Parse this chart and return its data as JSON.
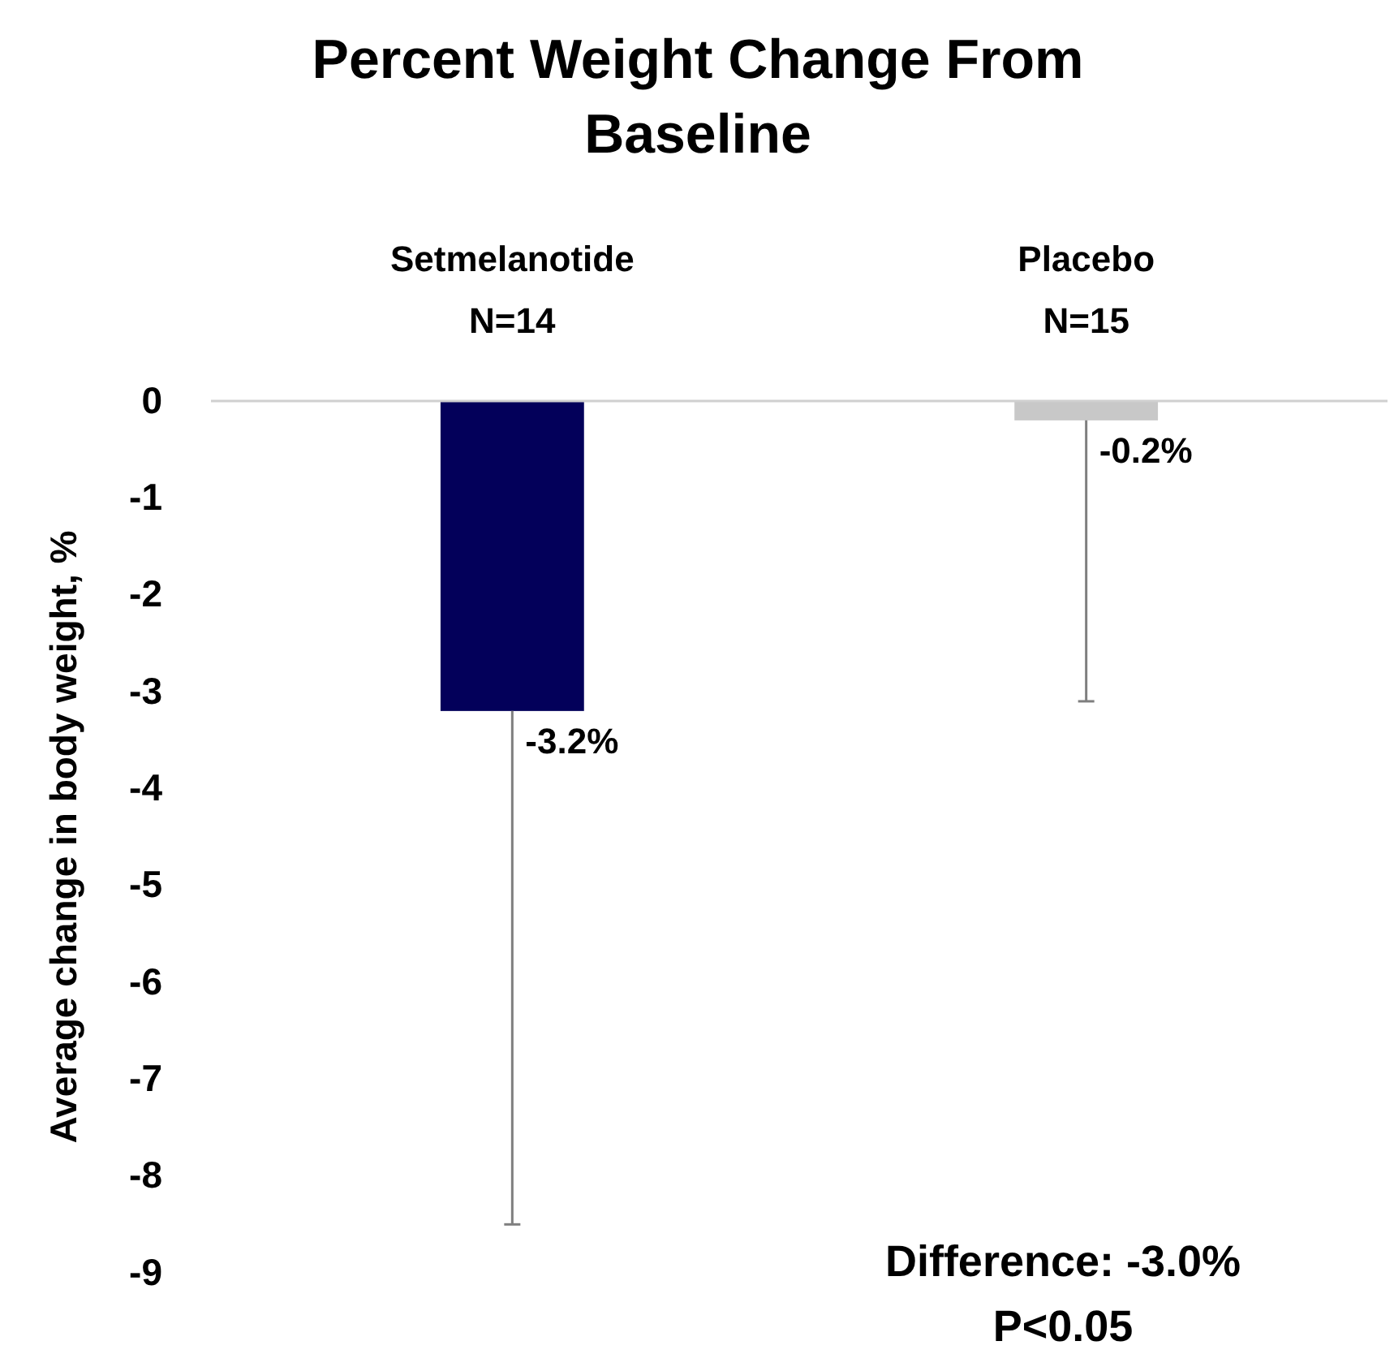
{
  "chart_data": {
    "type": "bar",
    "title": "Percent Weight Change From Baseline",
    "ylabel": "Average change in body weight, %",
    "categories": [
      "Setmelanotide\nN=14",
      "Placebo\nN=15"
    ],
    "values": [
      -3.2,
      -0.2
    ],
    "colors": [
      "#03005a",
      "#c8c8c8"
    ],
    "errors": [
      [
        -8.5,
        -3.2
      ],
      [
        -3.1,
        -0.2
      ]
    ],
    "value_labels": [
      "-3.2%",
      "-0.2%"
    ],
    "ylim": [
      -9,
      0
    ],
    "yticks": [
      0,
      -1,
      -2,
      -3,
      -4,
      -5,
      -6,
      -7,
      -8,
      -9
    ],
    "grid": false,
    "annotations": [
      "Difference: -3.0%",
      "P<0.05"
    ]
  }
}
